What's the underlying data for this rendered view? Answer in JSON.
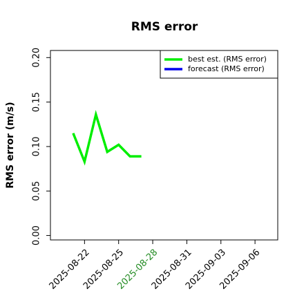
{
  "chart_data": {
    "type": "line",
    "title": "RMS error",
    "y_label": "RMS error (m/s)",
    "x": [
      "2025-08-21",
      "2025-08-22",
      "2025-08-23",
      "2025-08-24",
      "2025-08-25",
      "2025-08-26",
      "2025-08-27"
    ],
    "series": [
      {
        "name": "best est. (RMS error)",
        "color": "#00ee00",
        "values": [
          0.115,
          0.083,
          0.136,
          0.094,
          0.102,
          0.089,
          0.089
        ]
      },
      {
        "name": "forecast (RMS error)",
        "color": "#0000ee",
        "values": [
          null,
          null,
          null,
          null,
          null,
          null,
          null
        ]
      }
    ],
    "xlim": [
      "2025-08-19",
      "2025-09-08"
    ],
    "xticks": [
      "2025-08-22",
      "2025-08-25",
      "2025-08-28",
      "2025-08-31",
      "2025-09-03",
      "2025-09-06"
    ],
    "today": "2025-08-28",
    "today_color": "#228b22",
    "ylim": [
      -0.005,
      0.208
    ],
    "yticks": [
      {
        "value": 0,
        "label": "0.00"
      },
      {
        "value": 0.05,
        "label": "0.05"
      },
      {
        "value": 0.1,
        "label": "0.10"
      },
      {
        "value": 0.15,
        "label": "0.15"
      },
      {
        "value": 0.2,
        "label": "0.20"
      }
    ],
    "legend": "upper right"
  }
}
